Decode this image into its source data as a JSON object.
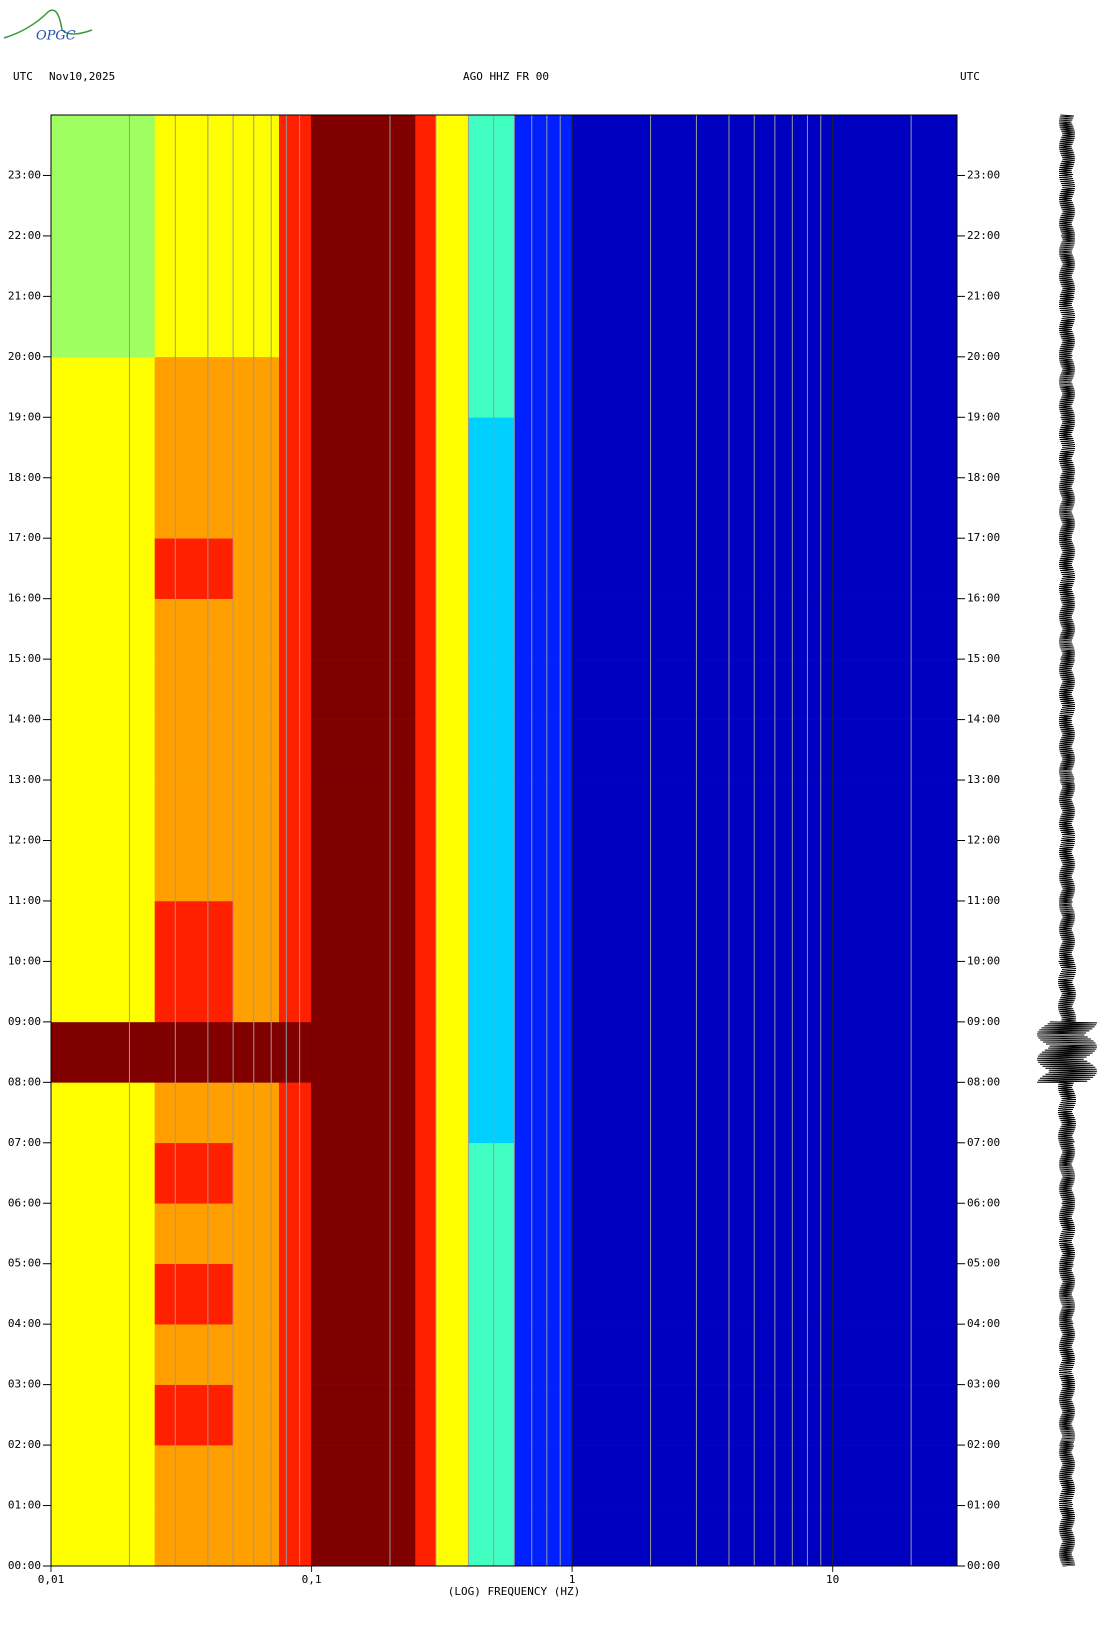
{
  "logo": "OPGC",
  "chart_data": {
    "type": "spectrogram",
    "title": "AGO HHZ FR 00",
    "date": "Nov10,2025",
    "left_label": "UTC",
    "right_label": "UTC",
    "xlabel": "(LOG) FREQUENCY (HZ)",
    "xlog": true,
    "xlim": [
      0.01,
      30
    ],
    "xticks": [
      {
        "value": 0.01,
        "label": "0,01"
      },
      {
        "value": 0.1,
        "label": "0,1"
      },
      1,
      10
    ],
    "xminorticks": [
      0.02,
      0.03,
      0.04,
      0.05,
      0.06,
      0.07,
      0.08,
      0.09,
      0.2,
      0.3,
      0.4,
      0.5,
      0.6,
      0.7,
      0.8,
      0.9,
      2,
      3,
      4,
      5,
      6,
      7,
      8,
      9,
      20
    ],
    "ylim": [
      0,
      24
    ],
    "yticks": [
      {
        "value": 0,
        "label": "00:00"
      },
      {
        "value": 1,
        "label": "01:00"
      },
      {
        "value": 2,
        "label": "02:00"
      },
      {
        "value": 3,
        "label": "03:00"
      },
      {
        "value": 4,
        "label": "04:00"
      },
      {
        "value": 5,
        "label": "05:00"
      },
      {
        "value": 6,
        "label": "06:00"
      },
      {
        "value": 7,
        "label": "07:00"
      },
      {
        "value": 8,
        "label": "08:00"
      },
      {
        "value": 9,
        "label": "09:00"
      },
      {
        "value": 10,
        "label": "10:00"
      },
      {
        "value": 11,
        "label": "11:00"
      },
      {
        "value": 12,
        "label": "12:00"
      },
      {
        "value": 13,
        "label": "13:00"
      },
      {
        "value": 14,
        "label": "14:00"
      },
      {
        "value": 15,
        "label": "15:00"
      },
      {
        "value": 16,
        "label": "16:00"
      },
      {
        "value": 17,
        "label": "17:00"
      },
      {
        "value": 18,
        "label": "18:00"
      },
      {
        "value": 19,
        "label": "19:00"
      },
      {
        "value": 20,
        "label": "20:00"
      },
      {
        "value": 21,
        "label": "21:00"
      },
      {
        "value": 22,
        "label": "22:00"
      },
      {
        "value": 23,
        "label": "23:00"
      }
    ],
    "freq_edges": [
      0.01,
      0.025,
      0.05,
      0.075,
      0.1,
      0.25,
      0.3,
      0.4,
      0.6,
      1,
      2,
      30
    ],
    "zlim": [
      0,
      10
    ],
    "colormap": [
      "#00007f",
      "#0000c0",
      "#0020ff",
      "#0080ff",
      "#00d0ff",
      "#40ffc0",
      "#a0ff60",
      "#ffff00",
      "#ffa000",
      "#ff2000",
      "#800000"
    ],
    "values": [
      [
        7,
        8,
        8,
        9,
        10,
        9,
        7,
        5,
        2,
        1,
        1
      ],
      [
        7,
        8,
        8,
        9,
        10,
        9,
        7,
        5,
        2,
        1,
        1
      ],
      [
        7,
        9,
        8,
        9,
        10,
        9,
        7,
        5,
        2,
        1,
        1
      ],
      [
        7,
        8,
        8,
        9,
        10,
        9,
        7,
        5,
        2,
        1,
        1
      ],
      [
        7,
        9,
        8,
        9,
        10,
        9,
        7,
        5,
        2,
        1,
        1
      ],
      [
        7,
        8,
        8,
        9,
        10,
        9,
        7,
        5,
        2,
        1,
        1
      ],
      [
        7,
        9,
        8,
        9,
        10,
        9,
        7,
        5,
        2,
        1,
        1
      ],
      [
        7,
        8,
        8,
        9,
        10,
        9,
        7,
        4,
        2,
        1,
        1
      ],
      [
        10,
        10,
        10,
        10,
        10,
        9,
        7,
        4,
        2,
        1,
        1
      ],
      [
        7,
        9,
        8,
        9,
        10,
        9,
        7,
        4,
        2,
        1,
        1
      ],
      [
        7,
        9,
        8,
        9,
        10,
        9,
        7,
        4,
        2,
        1,
        1
      ],
      [
        7,
        8,
        8,
        9,
        10,
        9,
        7,
        4,
        2,
        1,
        1
      ],
      [
        7,
        8,
        8,
        9,
        10,
        9,
        7,
        4,
        2,
        1,
        1
      ],
      [
        7,
        8,
        8,
        9,
        10,
        9,
        7,
        4,
        2,
        1,
        1
      ],
      [
        7,
        8,
        8,
        9,
        10,
        9,
        7,
        4,
        2,
        1,
        1
      ],
      [
        7,
        8,
        8,
        9,
        10,
        9,
        7,
        4,
        2,
        1,
        1
      ],
      [
        7,
        9,
        8,
        9,
        10,
        9,
        7,
        4,
        2,
        1,
        1
      ],
      [
        7,
        8,
        8,
        9,
        10,
        9,
        7,
        4,
        2,
        1,
        1
      ],
      [
        7,
        8,
        8,
        9,
        10,
        9,
        7,
        4,
        2,
        1,
        1
      ],
      [
        7,
        8,
        8,
        9,
        10,
        9,
        7,
        5,
        2,
        1,
        1
      ],
      [
        6,
        7,
        7,
        9,
        10,
        9,
        7,
        5,
        2,
        1,
        1
      ],
      [
        6,
        7,
        7,
        9,
        10,
        9,
        7,
        5,
        2,
        1,
        1
      ],
      [
        6,
        7,
        7,
        9,
        10,
        9,
        7,
        5,
        2,
        1,
        1
      ],
      [
        6,
        7,
        7,
        9,
        10,
        9,
        7,
        5,
        2,
        1,
        1
      ]
    ],
    "trace": [
      8,
      8,
      8,
      8,
      8,
      8,
      8,
      9,
      30,
      9,
      8,
      8,
      8,
      8,
      8,
      8,
      8,
      8,
      8,
      8,
      8,
      8,
      8,
      8
    ]
  }
}
